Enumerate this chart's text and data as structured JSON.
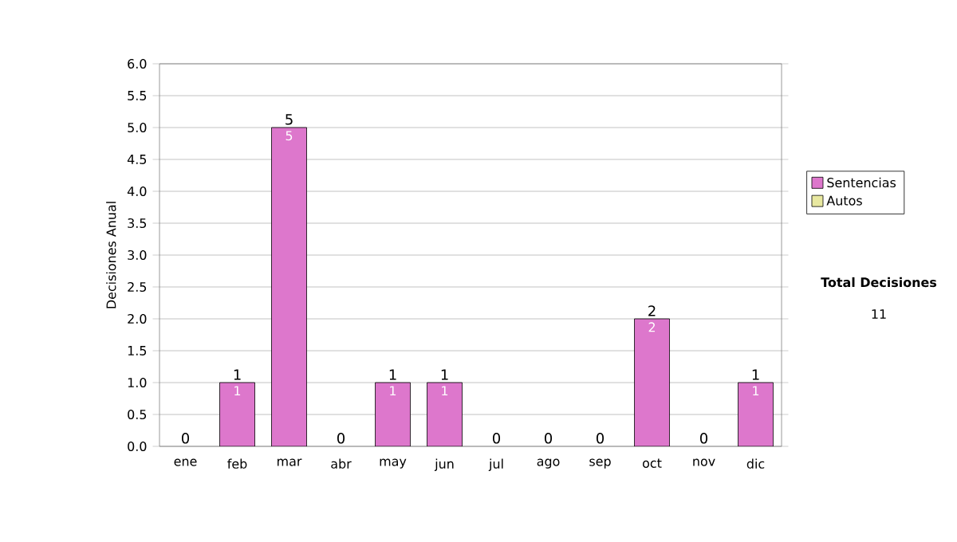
{
  "chart_data": {
    "type": "bar",
    "stacked": true,
    "ylabel": "Decisiones Anual",
    "categories": [
      "ene",
      "feb",
      "mar",
      "abr",
      "may",
      "jun",
      "jul",
      "ago",
      "sep",
      "oct",
      "nov",
      "dic"
    ],
    "series": [
      {
        "name": "Sentencias",
        "color": "#dd77cc",
        "values": [
          0,
          1,
          5,
          0,
          1,
          1,
          0,
          0,
          0,
          2,
          0,
          1
        ],
        "value_labels": [
          null,
          "1",
          "5",
          null,
          "1",
          "1",
          null,
          null,
          null,
          "2",
          null,
          "1"
        ]
      },
      {
        "name": "Autos",
        "color": "#e8e8a0",
        "values": [
          0,
          0,
          0,
          0,
          0,
          0,
          0,
          0,
          0,
          0,
          0,
          0
        ]
      }
    ],
    "totals": [
      "0",
      "1",
      "5",
      "0",
      "1",
      "1",
      "0",
      "0",
      "0",
      "2",
      "0",
      "1"
    ],
    "ylim": [
      0,
      6
    ],
    "yticks": [
      {
        "value": 0,
        "label": "0.0"
      },
      {
        "value": 0.5,
        "label": "0.5"
      },
      {
        "value": 1,
        "label": "1.0"
      },
      {
        "value": 1.5,
        "label": "1.5"
      },
      {
        "value": 2,
        "label": "2.0"
      },
      {
        "value": 2.5,
        "label": "2.5"
      },
      {
        "value": 3,
        "label": "3.0"
      },
      {
        "value": 3.5,
        "label": "3.5"
      },
      {
        "value": 4,
        "label": "4.0"
      },
      {
        "value": 4.5,
        "label": "4.5"
      },
      {
        "value": 5,
        "label": "5.0"
      },
      {
        "value": 5.5,
        "label": "5.5"
      },
      {
        "value": 6,
        "label": "6.0"
      }
    ],
    "grid": "y",
    "legend": "right",
    "annotations": [
      "**Total Decisiones**",
      "11"
    ]
  }
}
